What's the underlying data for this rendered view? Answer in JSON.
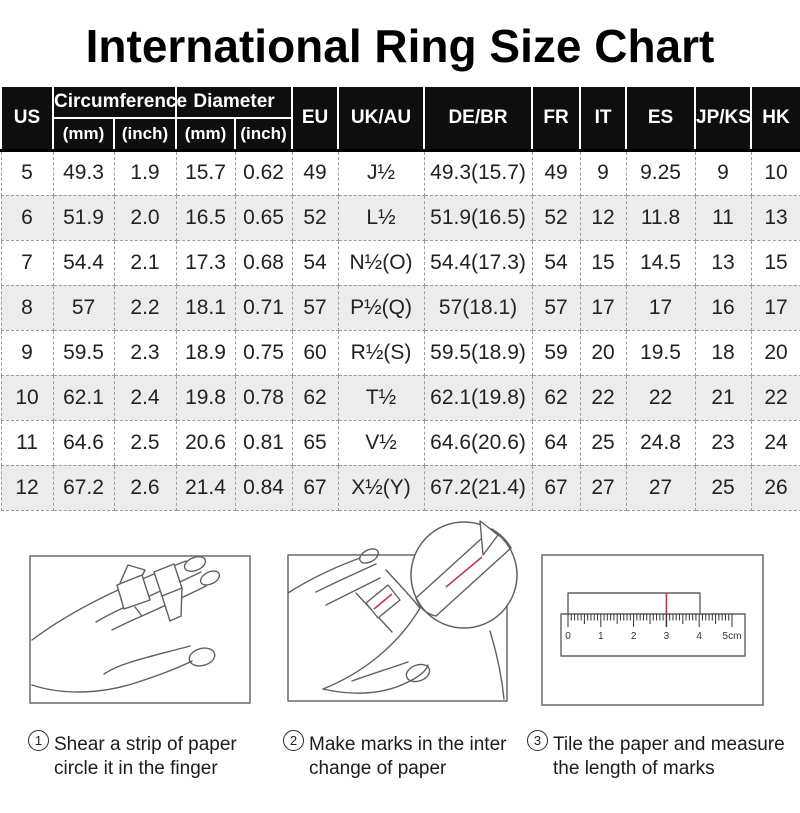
{
  "colors": {
    "header_bg": "#0e0e0e",
    "header_text": "#ffffff",
    "row_stripe": "#ececec",
    "dashed_border": "#9b9b9b",
    "line_art": "#606060",
    "mark_red": "#bf3b4d",
    "body_text": "#222222"
  },
  "chart_data": {
    "type": "table",
    "title": "International Ring Size Chart",
    "column_groups": [
      {
        "label": "Circumference",
        "span": 2
      },
      {
        "label": "Diameter",
        "span": 2
      }
    ],
    "columns": [
      "US",
      "(mm)",
      "(inch)",
      "(mm)",
      "(inch)",
      "EU",
      "UK/AU",
      "DE/BR",
      "FR",
      "IT",
      "ES",
      "JP/KS",
      "HK"
    ],
    "rows": [
      [
        "5",
        "49.3",
        "1.9",
        "15.7",
        "0.62",
        "49",
        "J½",
        "49.3(15.7)",
        "49",
        "9",
        "9.25",
        "9",
        "10"
      ],
      [
        "6",
        "51.9",
        "2.0",
        "16.5",
        "0.65",
        "52",
        "L½",
        "51.9(16.5)",
        "52",
        "12",
        "11.8",
        "11",
        "13"
      ],
      [
        "7",
        "54.4",
        "2.1",
        "17.3",
        "0.68",
        "54",
        "N½(O)",
        "54.4(17.3)",
        "54",
        "15",
        "14.5",
        "13",
        "15"
      ],
      [
        "8",
        "57",
        "2.2",
        "18.1",
        "0.71",
        "57",
        "P½(Q)",
        "57(18.1)",
        "57",
        "17",
        "17",
        "16",
        "17"
      ],
      [
        "9",
        "59.5",
        "2.3",
        "18.9",
        "0.75",
        "60",
        "R½(S)",
        "59.5(18.9)",
        "59",
        "20",
        "19.5",
        "18",
        "20"
      ],
      [
        "10",
        "62.1",
        "2.4",
        "19.8",
        "0.78",
        "62",
        "T½",
        "62.1(19.8)",
        "62",
        "22",
        "22",
        "21",
        "22"
      ],
      [
        "11",
        "64.6",
        "2.5",
        "20.6",
        "0.81",
        "65",
        "V½",
        "64.6(20.6)",
        "64",
        "25",
        "24.8",
        "23",
        "24"
      ],
      [
        "12",
        "67.2",
        "2.6",
        "21.4",
        "0.84",
        "67",
        "X½(Y)",
        "67.2(21.4)",
        "67",
        "27",
        "27",
        "25",
        "26"
      ]
    ]
  },
  "ruler": {
    "labels": [
      "0",
      "1",
      "2",
      "3",
      "4",
      "5cm"
    ]
  },
  "steps": [
    {
      "num": "1",
      "line1": "Shear a strip of paper",
      "line2": "circle it in the finger"
    },
    {
      "num": "2",
      "line1": "Make marks in the inter",
      "line2": "change of paper"
    },
    {
      "num": "3",
      "line1": "Tile the paper and measure",
      "line2": "the length of marks"
    }
  ]
}
